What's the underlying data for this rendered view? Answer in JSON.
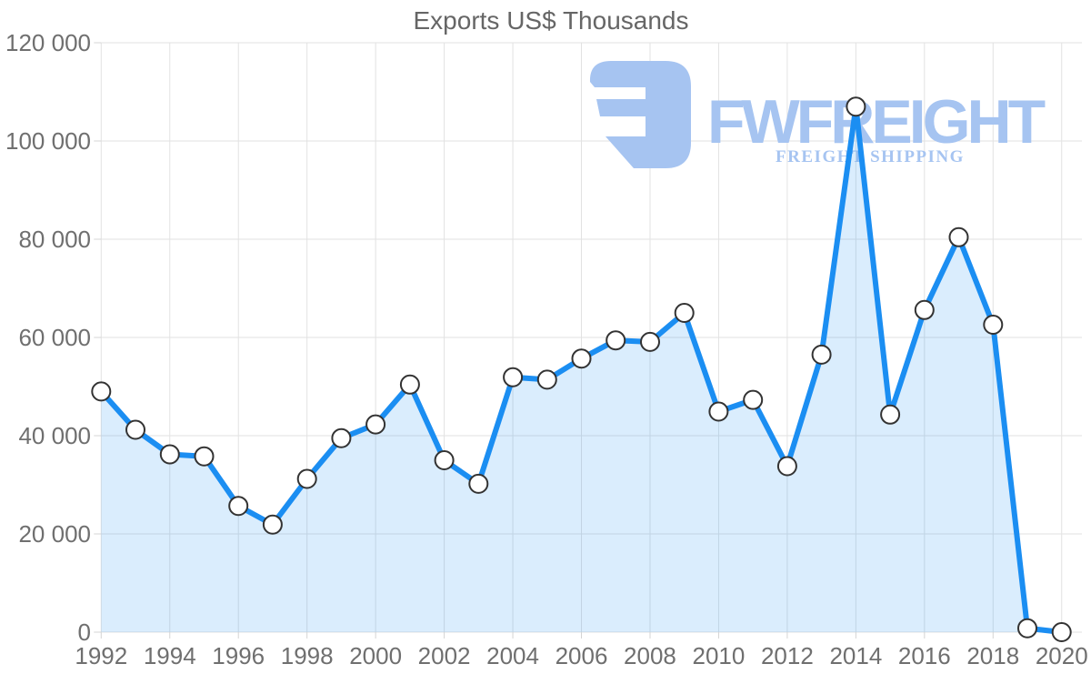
{
  "chart_data": {
    "type": "area",
    "title": "Exports US$ Thousands",
    "x": [
      1992,
      1993,
      1994,
      1995,
      1996,
      1997,
      1998,
      1999,
      2000,
      2001,
      2002,
      2003,
      2004,
      2005,
      2006,
      2007,
      2008,
      2009,
      2010,
      2011,
      2012,
      2013,
      2014,
      2015,
      2016,
      2017,
      2018,
      2019,
      2020
    ],
    "values": [
      49000,
      41200,
      36200,
      35800,
      25700,
      21900,
      31200,
      39500,
      42300,
      50400,
      35000,
      30200,
      51900,
      51400,
      55700,
      59400,
      59100,
      65000,
      44900,
      47300,
      33800,
      56500,
      107000,
      44300,
      65600,
      80400,
      62600,
      800,
      0
    ],
    "xlabel": "",
    "ylabel": "",
    "ylim": [
      0,
      120000
    ],
    "y_ticks": [
      {
        "value": 0,
        "label": "0"
      },
      {
        "value": 20000,
        "label": "20 000"
      },
      {
        "value": 40000,
        "label": "40 000"
      },
      {
        "value": 60000,
        "label": "60 000"
      },
      {
        "value": 80000,
        "label": "80 000"
      },
      {
        "value": 100000,
        "label": "100 000"
      },
      {
        "value": 120000,
        "label": "120 000"
      }
    ],
    "x_tick_labels": [
      "1992",
      "1994",
      "1996",
      "1998",
      "2000",
      "2002",
      "2004",
      "2006",
      "2008",
      "2010",
      "2012",
      "2014",
      "2016",
      "2018",
      "2020"
    ],
    "x_tick_interval": 2,
    "grid": true,
    "legend": "none",
    "marker": "circle-white"
  },
  "watermark": {
    "brand": "FWFREIGHT",
    "tagline": "FREIGHT SHIPPING",
    "color": "#a6c4f1"
  },
  "colors": {
    "line": "#1b8ef2",
    "fill": "rgba(27,142,242,0.16)",
    "grid": "#e2e2e2",
    "tick": "#d4d4d4",
    "axis_label": "#6f6f6f",
    "title": "#666666",
    "marker_fill": "#ffffff",
    "marker_stroke": "#333333",
    "background": "#ffffff"
  }
}
